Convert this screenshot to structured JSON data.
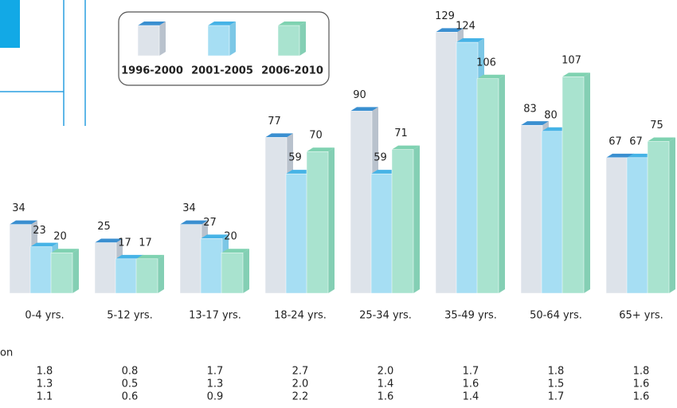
{
  "chart_data": {
    "type": "bar3d",
    "categories": [
      "0-4 yrs.",
      "5-12 yrs.",
      "13-17 yrs.",
      "18-24 yrs.",
      "25-34 yrs.",
      "35-49 yrs.",
      "50-64 yrs.",
      "65+ yrs."
    ],
    "series": [
      {
        "name": "1996-2000",
        "color": "#dde3ea",
        "values": [
          34,
          25,
          34,
          77,
          90,
          129,
          83,
          67
        ]
      },
      {
        "name": "2001-2005",
        "color": "#a6def3",
        "values": [
          23,
          17,
          27,
          59,
          59,
          124,
          80,
          67
        ]
      },
      {
        "name": "2006-2010",
        "color": "#a9e3cf",
        "values": [
          20,
          17,
          20,
          70,
          71,
          106,
          107,
          75
        ]
      }
    ]
  },
  "table": {
    "label": "on",
    "rows": [
      [
        "1.8",
        "0.8",
        "1.7",
        "2.7",
        "2.0",
        "1.7",
        "1.8",
        "1.8"
      ],
      [
        "1.3",
        "0.5",
        "1.3",
        "2.0",
        "1.4",
        "1.6",
        "1.5",
        "1.6"
      ],
      [
        "1.1",
        "0.6",
        "0.9",
        "2.2",
        "1.6",
        "1.4",
        "1.7",
        "1.6"
      ]
    ]
  }
}
